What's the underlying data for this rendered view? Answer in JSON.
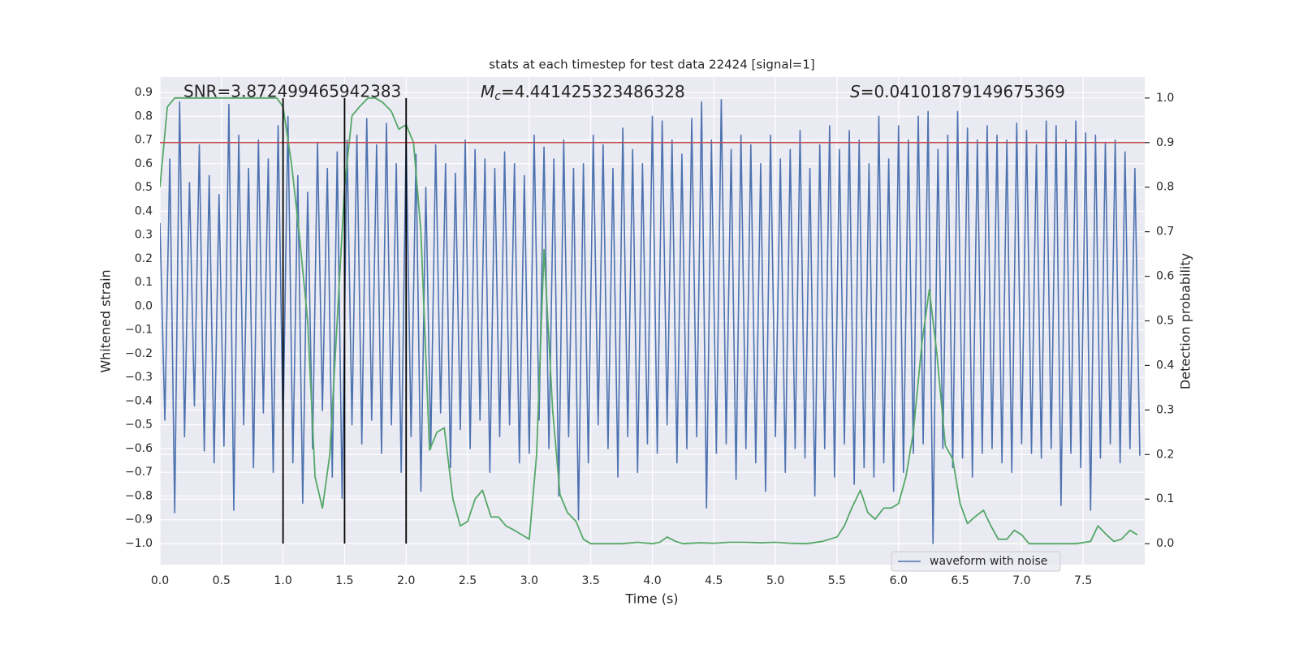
{
  "chart_data": {
    "type": "line",
    "title": "stats at each timestep for test data 22424 [signal=1]",
    "xlabel": "Time (s)",
    "ylabel": "Whitened strain",
    "y2label": "Detection probability",
    "annotations": [
      {
        "text": "SNR=3.872499465942383"
      },
      {
        "italic": "M",
        "sub": "c",
        "rest": "=4.441425323486328"
      },
      {
        "italic": "S",
        "rest": "=0.04101879149675369"
      }
    ],
    "xlim": [
      0,
      8.0
    ],
    "ylim": [
      -1.089,
      0.965
    ],
    "y2lim": [
      -0.047,
      1.047
    ],
    "xticks": [
      {
        "value": 0,
        "label": "0.0"
      },
      0.5,
      {
        "value": 1,
        "label": "1.0"
      },
      1.5,
      {
        "value": 2,
        "label": "2.0"
      },
      2.5,
      {
        "value": 3,
        "label": "3.0"
      },
      3.5,
      {
        "value": 4,
        "label": "4.0"
      },
      4.5,
      {
        "value": 5,
        "label": "5.0"
      },
      5.5,
      {
        "value": 6,
        "label": "6.0"
      },
      6.5,
      {
        "value": 7,
        "label": "7.0"
      },
      7.5
    ],
    "yticks": [
      0.9,
      0.8,
      0.7,
      0.6,
      0.5,
      0.4,
      0.3,
      0.2,
      0.1,
      {
        "value": 0,
        "label": "0.0"
      },
      {
        "value": -0.1,
        "label": "−0.1"
      },
      {
        "value": -0.2,
        "label": "−0.2"
      },
      {
        "value": -0.3,
        "label": "−0.3"
      },
      {
        "value": -0.4,
        "label": "−0.4"
      },
      {
        "value": -0.5,
        "label": "−0.5"
      },
      {
        "value": -0.6,
        "label": "−0.6"
      },
      {
        "value": -0.7,
        "label": "−0.7"
      },
      {
        "value": -0.8,
        "label": "−0.8"
      },
      {
        "value": -0.9,
        "label": "−0.9"
      },
      {
        "value": -1,
        "label": "−1.0"
      }
    ],
    "y2ticks": [
      {
        "value": 1,
        "label": "1.0"
      },
      0.9,
      0.8,
      0.7,
      0.6,
      0.5,
      0.4,
      0.3,
      0.2,
      0.1,
      {
        "value": 0,
        "label": "0.0"
      }
    ],
    "grid": true,
    "legend": "lower right",
    "threshold": 0.9,
    "threshold_color": "#c44e52",
    "vlines": [
      1.0,
      1.5,
      2.0
    ],
    "vline_color": "#000000",
    "series": [
      {
        "name": "waveform with noise",
        "color": "#4c72b0",
        "x": [
          0,
          0.04,
          0.08,
          0.12,
          0.16,
          0.2,
          0.24,
          0.28,
          0.32,
          0.36,
          0.4,
          0.44,
          0.48,
          0.52,
          0.56,
          0.6,
          0.64,
          0.68,
          0.72,
          0.76,
          0.8,
          0.84,
          0.88,
          0.92,
          0.96,
          1.0,
          1.04,
          1.08,
          1.12,
          1.16,
          1.2,
          1.24,
          1.28,
          1.32,
          1.36,
          1.4,
          1.44,
          1.48,
          1.52,
          1.56,
          1.6,
          1.64,
          1.68,
          1.72,
          1.76,
          1.8,
          1.84,
          1.88,
          1.92,
          1.96,
          2.0,
          2.04,
          2.08,
          2.12,
          2.16,
          2.2,
          2.24,
          2.28,
          2.32,
          2.36,
          2.4,
          2.44,
          2.48,
          2.52,
          2.56,
          2.6,
          2.64,
          2.68,
          2.72,
          2.76,
          2.8,
          2.84,
          2.88,
          2.92,
          2.96,
          3.0,
          3.04,
          3.08,
          3.12,
          3.16,
          3.2,
          3.24,
          3.28,
          3.32,
          3.36,
          3.4,
          3.44,
          3.48,
          3.52,
          3.56,
          3.6,
          3.64,
          3.68,
          3.72,
          3.76,
          3.8,
          3.84,
          3.88,
          3.92,
          3.96,
          4.0,
          4.04,
          4.08,
          4.12,
          4.16,
          4.2,
          4.24,
          4.28,
          4.32,
          4.36,
          4.4,
          4.44,
          4.48,
          4.52,
          4.56,
          4.6,
          4.64,
          4.68,
          4.72,
          4.76,
          4.8,
          4.84,
          4.88,
          4.92,
          4.96,
          5.0,
          5.04,
          5.08,
          5.12,
          5.16,
          5.2,
          5.24,
          5.28,
          5.32,
          5.36,
          5.4,
          5.44,
          5.48,
          5.52,
          5.56,
          5.6,
          5.64,
          5.68,
          5.72,
          5.76,
          5.8,
          5.84,
          5.88,
          5.92,
          5.96,
          6.0,
          6.04,
          6.08,
          6.12,
          6.16,
          6.2,
          6.24,
          6.28,
          6.32,
          6.36,
          6.4,
          6.44,
          6.48,
          6.52,
          6.56,
          6.6,
          6.64,
          6.68,
          6.72,
          6.76,
          6.8,
          6.84,
          6.88,
          6.92,
          6.96,
          7.0,
          7.04,
          7.08,
          7.12,
          7.16,
          7.2,
          7.24,
          7.28,
          7.32,
          7.36,
          7.4,
          7.44,
          7.48,
          7.52,
          7.56,
          7.6,
          7.64,
          7.68,
          7.72,
          7.76,
          7.8,
          7.84,
          7.88,
          7.92,
          7.96
        ],
        "values": [
          0.35,
          -0.48,
          0.62,
          -0.87,
          0.86,
          -0.55,
          0.52,
          -0.42,
          0.68,
          -0.61,
          0.55,
          -0.66,
          0.47,
          -0.59,
          0.85,
          -0.86,
          0.72,
          -0.5,
          0.58,
          -0.68,
          0.7,
          -0.45,
          0.62,
          -0.7,
          0.76,
          -0.52,
          0.8,
          -0.66,
          0.55,
          -0.83,
          0.48,
          -0.6,
          0.69,
          -0.44,
          0.58,
          -0.72,
          0.65,
          -0.81,
          0.7,
          -0.5,
          0.72,
          -0.58,
          0.79,
          -0.48,
          0.68,
          -0.62,
          0.77,
          -0.5,
          0.6,
          -0.7,
          0.71,
          -0.55,
          0.64,
          -0.78,
          0.5,
          -0.6,
          0.68,
          -0.45,
          0.6,
          -0.68,
          0.56,
          -0.52,
          0.7,
          -0.6,
          0.66,
          -0.48,
          0.62,
          -0.7,
          0.58,
          -0.55,
          0.65,
          -0.5,
          0.6,
          -0.66,
          0.55,
          -0.62,
          0.72,
          -0.48,
          0.67,
          -0.6,
          0.62,
          -0.8,
          0.7,
          -0.55,
          0.58,
          -0.9,
          0.6,
          -0.66,
          0.72,
          -0.5,
          0.68,
          -0.6,
          0.58,
          -0.72,
          0.75,
          -0.55,
          0.66,
          -0.7,
          0.6,
          -0.58,
          0.8,
          -0.62,
          0.78,
          -0.5,
          0.7,
          -0.66,
          0.64,
          -0.6,
          0.79,
          -0.55,
          0.86,
          -0.85,
          0.7,
          -0.62,
          0.87,
          -0.58,
          0.66,
          -0.73,
          0.72,
          -0.6,
          0.68,
          -0.66,
          0.6,
          -0.78,
          0.72,
          -0.55,
          0.62,
          -0.7,
          0.66,
          -0.6,
          0.74,
          -0.64,
          0.58,
          -0.8,
          0.68,
          -0.6,
          0.76,
          -0.72,
          0.66,
          -0.58,
          0.74,
          -0.75,
          0.7,
          -0.68,
          0.6,
          -0.72,
          0.8,
          -0.66,
          0.62,
          -0.78,
          0.76,
          -0.7,
          0.7,
          -0.62,
          0.8,
          -0.58,
          0.82,
          -1.0,
          0.66,
          -0.6,
          0.72,
          -0.68,
          0.82,
          -0.64,
          0.75,
          -0.72,
          0.7,
          -0.62,
          0.76,
          -0.6,
          0.72,
          -0.66,
          0.7,
          -0.7,
          0.77,
          -0.58,
          0.74,
          -0.62,
          0.68,
          -0.64,
          0.78,
          -0.6,
          0.76,
          -0.84,
          0.7,
          -0.62,
          0.78,
          -0.68,
          0.73,
          -0.86,
          0.72,
          -0.64,
          0.69,
          -0.58,
          0.7,
          -0.66,
          0.65,
          -0.6,
          0.58,
          -0.63
        ]
      },
      {
        "color": "#55a868",
        "axis": "y2",
        "x": [
          0,
          0.06,
          0.12,
          0.25,
          0.5,
          0.75,
          0.95,
          1.0,
          1.07,
          1.13,
          1.2,
          1.26,
          1.32,
          1.38,
          1.44,
          1.5,
          1.56,
          1.62,
          1.69,
          1.75,
          1.81,
          1.88,
          1.94,
          2.0,
          2.06,
          2.12,
          2.19,
          2.25,
          2.31,
          2.38,
          2.44,
          2.5,
          2.56,
          2.62,
          2.69,
          2.75,
          2.81,
          2.88,
          3.0,
          3.06,
          3.12,
          3.19,
          3.25,
          3.31,
          3.38,
          3.44,
          3.5,
          3.62,
          3.75,
          3.88,
          4.0,
          4.06,
          4.12,
          4.19,
          4.25,
          4.38,
          4.5,
          4.62,
          4.75,
          4.88,
          5.0,
          5.12,
          5.25,
          5.38,
          5.44,
          5.5,
          5.56,
          5.62,
          5.69,
          5.75,
          5.81,
          5.88,
          5.94,
          6.0,
          6.06,
          6.12,
          6.19,
          6.25,
          6.31,
          6.38,
          6.44,
          6.5,
          6.56,
          6.62,
          6.69,
          6.75,
          6.81,
          6.88,
          6.94,
          7.0,
          7.06,
          7.19,
          7.31,
          7.44,
          7.56,
          7.62,
          7.69,
          7.75,
          7.81,
          7.88,
          7.94
        ],
        "values": [
          0.8,
          0.98,
          1.0,
          1.0,
          1.0,
          1.0,
          1.0,
          0.98,
          0.85,
          0.7,
          0.5,
          0.15,
          0.08,
          0.2,
          0.5,
          0.8,
          0.96,
          0.98,
          1.0,
          1.0,
          0.99,
          0.97,
          0.93,
          0.94,
          0.9,
          0.7,
          0.21,
          0.25,
          0.26,
          0.1,
          0.04,
          0.05,
          0.1,
          0.12,
          0.06,
          0.06,
          0.04,
          0.03,
          0.01,
          0.2,
          0.66,
          0.3,
          0.11,
          0.07,
          0.05,
          0.01,
          0.0,
          0.0,
          0.0,
          0.003,
          0.0,
          0.003,
          0.015,
          0.005,
          0.0,
          0.002,
          0.001,
          0.003,
          0.003,
          0.002,
          0.003,
          0.001,
          0.0,
          0.005,
          0.01,
          0.015,
          0.04,
          0.08,
          0.12,
          0.07,
          0.055,
          0.08,
          0.08,
          0.09,
          0.15,
          0.25,
          0.45,
          0.57,
          0.43,
          0.22,
          0.19,
          0.09,
          0.045,
          0.06,
          0.075,
          0.04,
          0.01,
          0.01,
          0.03,
          0.02,
          0.0,
          0.0,
          0.0,
          0.0,
          0.005,
          0.04,
          0.02,
          0.005,
          0.01,
          0.03,
          0.02
        ]
      }
    ]
  }
}
